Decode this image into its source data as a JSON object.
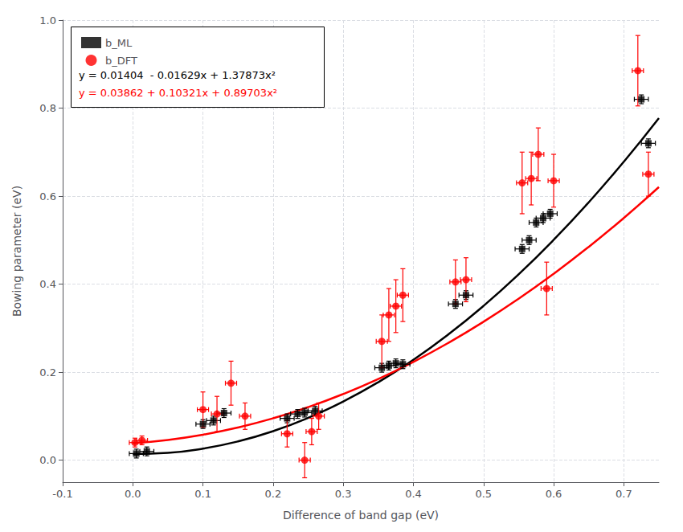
{
  "chart_data": {
    "type": "scatter",
    "xlabel": "Difference of band gap (eV)",
    "ylabel": "Bowing parameter (eV)",
    "xlim": [
      -0.1,
      0.75
    ],
    "ylim": [
      -0.05,
      1.0
    ],
    "xticks": [
      -0.1,
      {
        "value": 0,
        "label": "0.0"
      },
      0.1,
      0.2,
      0.3,
      0.4,
      0.5,
      0.6,
      0.7
    ],
    "yticks": [
      {
        "value": 0,
        "label": "0.0"
      },
      0.2,
      0.4,
      0.6,
      0.8,
      {
        "value": 1.0,
        "label": "1.0"
      }
    ],
    "grid": true,
    "legend": "upper left",
    "series": [
      {
        "name": "b_ML",
        "type": "scatter",
        "color": "#000000",
        "marker": "square",
        "x": [
          0.005,
          0.02,
          0.1,
          0.115,
          0.13,
          0.22,
          0.235,
          0.245,
          0.26,
          0.355,
          0.365,
          0.375,
          0.385,
          0.46,
          0.475,
          0.555,
          0.565,
          0.575,
          0.585,
          0.595,
          0.725,
          0.735
        ],
        "y": [
          0.015,
          0.02,
          0.082,
          0.09,
          0.107,
          0.095,
          0.105,
          0.108,
          0.112,
          0.21,
          0.215,
          0.22,
          0.218,
          0.355,
          0.375,
          0.48,
          0.5,
          0.54,
          0.55,
          0.56,
          0.82,
          0.72
        ],
        "xerr": [
          0.01,
          0.01,
          0.01,
          0.01,
          0.01,
          0.01,
          0.01,
          0.01,
          0.01,
          0.01,
          0.01,
          0.01,
          0.01,
          0.01,
          0.01,
          0.01,
          0.01,
          0.01,
          0.01,
          0.01,
          0.01,
          0.01
        ],
        "yerr": [
          0.01,
          0.01,
          0.01,
          0.01,
          0.01,
          0.01,
          0.01,
          0.01,
          0.01,
          0.01,
          0.01,
          0.01,
          0.01,
          0.01,
          0.01,
          0.01,
          0.01,
          0.01,
          0.01,
          0.01,
          0.01,
          0.01
        ]
      },
      {
        "name": "b_DFT",
        "type": "scatter",
        "color": "#ff0000",
        "marker": "circle",
        "x": [
          0.003,
          0.013,
          0.1,
          0.12,
          0.14,
          0.16,
          0.22,
          0.245,
          0.255,
          0.265,
          0.355,
          0.365,
          0.375,
          0.385,
          0.46,
          0.475,
          0.555,
          0.568,
          0.578,
          0.59,
          0.6,
          0.72,
          0.735
        ],
        "y": [
          0.04,
          0.045,
          0.115,
          0.105,
          0.175,
          0.1,
          0.06,
          0.0,
          0.065,
          0.1,
          0.27,
          0.33,
          0.35,
          0.375,
          0.405,
          0.41,
          0.63,
          0.64,
          0.695,
          0.39,
          0.635,
          0.885,
          0.65
        ],
        "xerr": [
          0.008,
          0.008,
          0.008,
          0.008,
          0.008,
          0.008,
          0.008,
          0.008,
          0.008,
          0.008,
          0.008,
          0.008,
          0.008,
          0.008,
          0.008,
          0.008,
          0.008,
          0.008,
          0.008,
          0.008,
          0.008,
          0.008,
          0.008
        ],
        "yerr": [
          0.01,
          0.01,
          0.04,
          0.04,
          0.05,
          0.03,
          0.03,
          0.04,
          0.03,
          0.03,
          0.06,
          0.06,
          0.06,
          0.06,
          0.05,
          0.05,
          0.07,
          0.06,
          0.06,
          0.06,
          0.06,
          0.08,
          0.05
        ]
      },
      {
        "type": "line",
        "color": "#000000",
        "line_style": "solid",
        "x": [
          0,
          0.05,
          0.1,
          0.15,
          0.2,
          0.25,
          0.3,
          0.35,
          0.4,
          0.45,
          0.5,
          0.55,
          0.6,
          0.65,
          0.7,
          0.75
        ],
        "y": [
          0.01404,
          0.016672325,
          0.0261983,
          0.042617925,
          0.0659312,
          0.096138125,
          0.1332387,
          0.177232925,
          0.2281208,
          0.285902325,
          0.3505775,
          0.422146325,
          0.5006088,
          0.585964925,
          0.6782147,
          0.777358125
        ]
      },
      {
        "type": "line",
        "color": "#ff0000",
        "line_style": "solid",
        "x": [
          0,
          0.05,
          0.1,
          0.15,
          0.2,
          0.25,
          0.3,
          0.35,
          0.4,
          0.45,
          0.5,
          0.55,
          0.6,
          0.65,
          0.7,
          0.75
        ],
        "y": [
          0.03862,
          0.046023075,
          0.0579113,
          0.074284675,
          0.0951432,
          0.120486875,
          0.1503157,
          0.184629675,
          0.2234288,
          0.266713075,
          0.3144825,
          0.366737075,
          0.4234768,
          0.484701675,
          0.5504117,
          0.620606875
        ]
      }
    ],
    "annotations": [
      {
        "text": "y = 0.01404  - 0.01629x + 1.37873x²",
        "color": "#000000"
      },
      {
        "text": "y = 0.03862 + 0.10321x + 0.89703x²",
        "color": "#ff0000"
      }
    ]
  }
}
